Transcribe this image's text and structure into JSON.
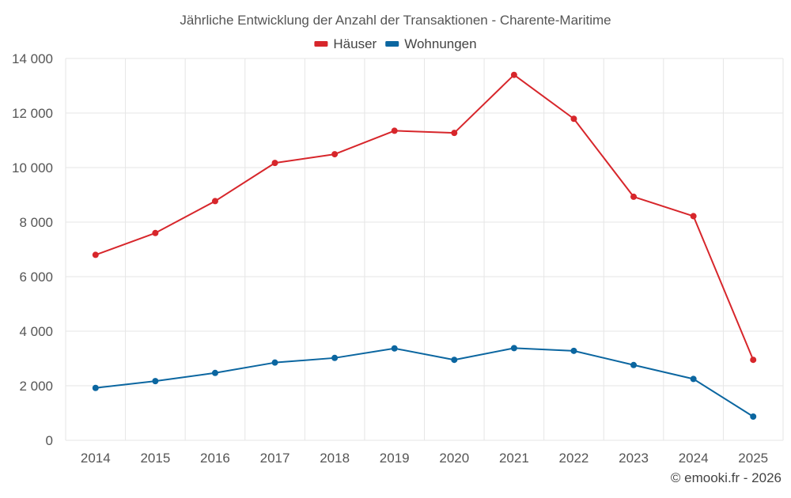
{
  "chart_data": {
    "type": "line",
    "title": "Jährliche Entwicklung der Anzahl der Transaktionen - Charente-Maritime",
    "categories": [
      "2014",
      "2015",
      "2016",
      "2017",
      "2018",
      "2019",
      "2020",
      "2021",
      "2022",
      "2023",
      "2024",
      "2025"
    ],
    "series": [
      {
        "name": "Häuser",
        "color": "#d7262b",
        "values": [
          6800,
          7600,
          8770,
          10170,
          10490,
          11350,
          11270,
          13400,
          11790,
          8930,
          8220,
          2950
        ]
      },
      {
        "name": "Wohnungen",
        "color": "#0b66a0",
        "values": [
          1920,
          2170,
          2470,
          2850,
          3020,
          3370,
          2950,
          3380,
          3280,
          2760,
          2250,
          870
        ]
      }
    ],
    "ylim": [
      0,
      14000
    ],
    "yticks": [
      0,
      2000,
      4000,
      6000,
      8000,
      10000,
      12000,
      14000
    ],
    "ytick_labels": [
      "0",
      "2 000",
      "4 000",
      "6 000",
      "8 000",
      "10 000",
      "12 000",
      "14 000"
    ],
    "grid": true,
    "legend": "top-center",
    "xlabel": "",
    "ylabel": ""
  },
  "credit": "© emooki.fr - 2026"
}
